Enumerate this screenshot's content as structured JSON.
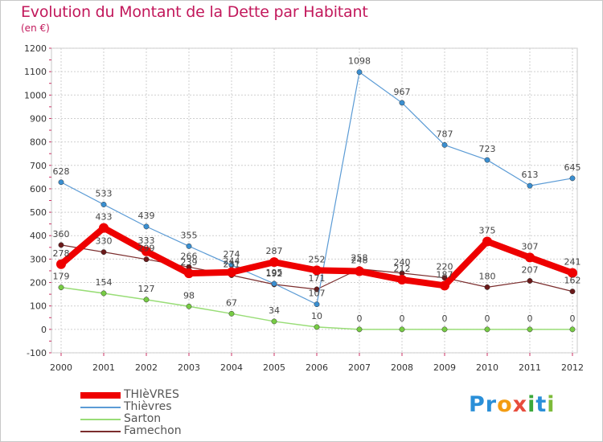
{
  "chart_data": {
    "type": "line",
    "title": "Evolution du Montant de la Dette par Habitant",
    "subtitle": "(en €)",
    "x": [
      "2000",
      "2001",
      "2002",
      "2003",
      "2004",
      "2005",
      "2006",
      "2007",
      "2008",
      "2009",
      "2010",
      "2011",
      "2012"
    ],
    "ylim": [
      -100,
      1200
    ],
    "yticks": [
      -100,
      0,
      100,
      200,
      300,
      400,
      500,
      600,
      700,
      800,
      900,
      1000,
      1100,
      1200
    ],
    "grid": true,
    "legend_position": "bottom-left",
    "series": [
      {
        "name": "THIèVRES",
        "color": "#ee0000",
        "width": 8,
        "marker_color": "#ee0000",
        "values": [
          278,
          433,
          333,
          239,
          244,
          287,
          252,
          248,
          212,
          187,
          375,
          307,
          241
        ],
        "labels": [
          "278",
          "433",
          "333",
          "239",
          "244",
          "287",
          "252",
          "248",
          "212",
          "187",
          "375",
          "307",
          "241"
        ]
      },
      {
        "name": "Thièvres",
        "color": "#5b9bd5",
        "width": 1.2,
        "marker_color": "#3a8fd1",
        "values": [
          628,
          533,
          439,
          355,
          274,
          195,
          107,
          1098,
          967,
          787,
          723,
          613,
          645
        ],
        "labels": [
          "628",
          "533",
          "439",
          "355",
          "274",
          "195",
          "107",
          "1098",
          "967",
          "787",
          "723",
          "613",
          "645"
        ]
      },
      {
        "name": "Sarton",
        "color": "#99dd77",
        "width": 1.5,
        "marker_color": "#77cc44",
        "values": [
          179,
          154,
          127,
          98,
          67,
          34,
          10,
          0,
          0,
          0,
          0,
          0,
          0
        ],
        "labels": [
          "179",
          "154",
          "127",
          "98",
          "67",
          "34",
          "10",
          "0",
          "0",
          "0",
          "0",
          "0",
          "0"
        ]
      },
      {
        "name": "Famechon",
        "color": "#7b2d2d",
        "width": 1.2,
        "marker_color": "#6b1a1a",
        "values": [
          360,
          330,
          299,
          266,
          231,
          192,
          171,
          258,
          240,
          220,
          180,
          207,
          162
        ],
        "labels": [
          "360",
          "330",
          "299",
          "266",
          "231",
          "192",
          "171",
          "258",
          "240",
          "220",
          "180",
          "207",
          "162"
        ]
      }
    ]
  },
  "logo": {
    "letters": [
      {
        "ch": "P",
        "color": "#2a8fd8"
      },
      {
        "ch": "r",
        "color": "#2a8fd8"
      },
      {
        "ch": "o",
        "color": "#f39c12"
      },
      {
        "ch": "x",
        "color": "#e74c3c"
      },
      {
        "ch": "i",
        "color": "#3aa83a"
      },
      {
        "ch": "t",
        "color": "#2a8fd8"
      },
      {
        "ch": "i",
        "color": "#7dbb3a"
      }
    ]
  }
}
